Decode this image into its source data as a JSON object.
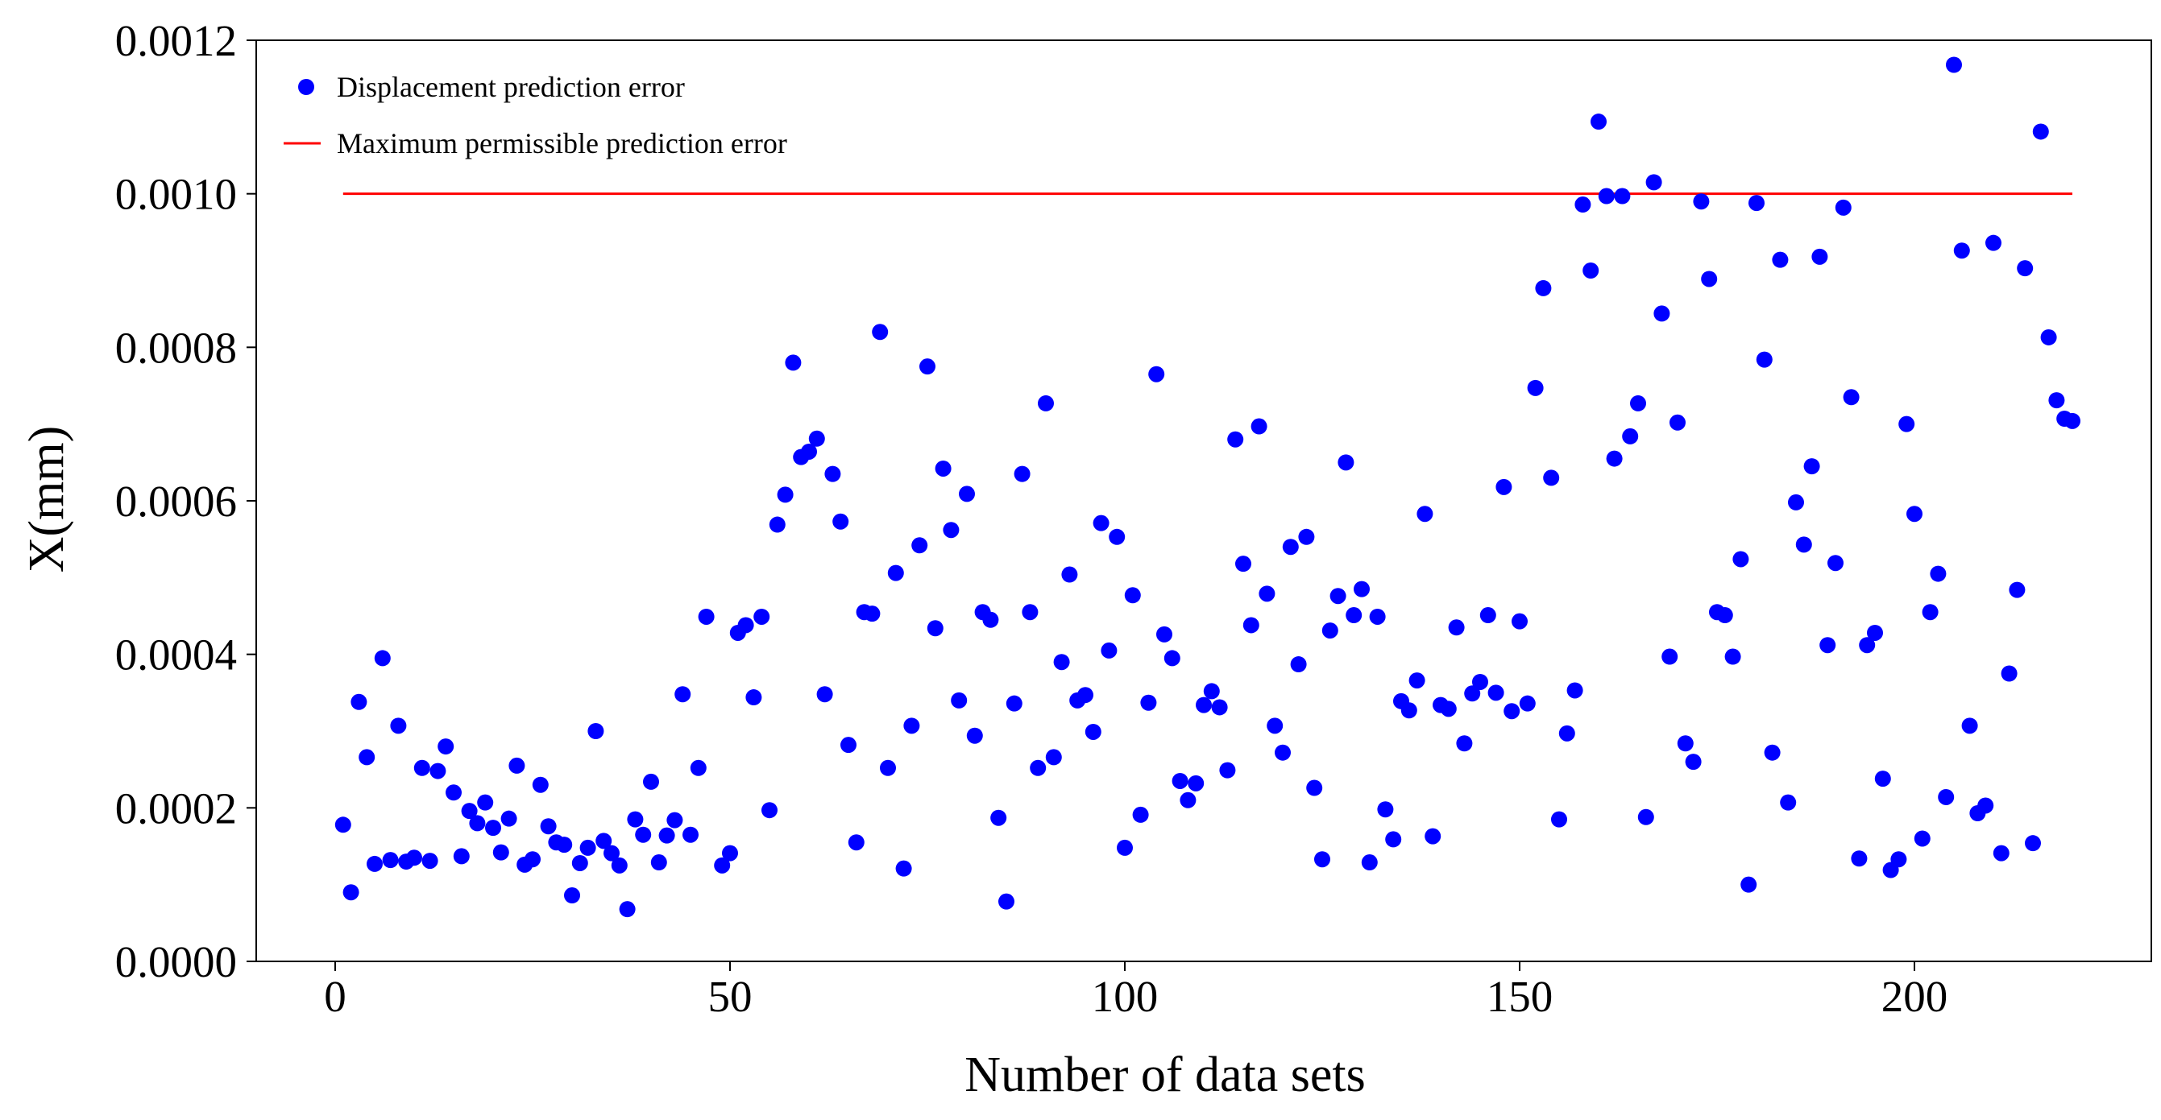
{
  "chart_data": {
    "type": "scatter",
    "title": "",
    "xlabel": "Number of data sets",
    "ylabel": "X(mm)",
    "xlim": [
      -10,
      230
    ],
    "ylim": [
      0,
      0.0012
    ],
    "x_ticks": [
      0,
      50,
      100,
      150,
      200
    ],
    "x_tick_labels": [
      "0",
      "50",
      "100",
      "150",
      "200"
    ],
    "y_ticks": [
      0,
      0.0002,
      0.0004,
      0.0006,
      0.0008,
      0.001,
      0.0012
    ],
    "y_tick_labels": [
      "0.0000",
      "0.0002",
      "0.0004",
      "0.0006",
      "0.0008",
      "0.0010",
      "0.0012"
    ],
    "grid": false,
    "legend_position": "top-left",
    "series": [
      {
        "name": "Displacement prediction error",
        "kind": "scatter",
        "color": "#0000ff",
        "points": [
          [
            1,
            0.000178
          ],
          [
            2,
            9e-05
          ],
          [
            3,
            0.000338
          ],
          [
            4,
            0.000266
          ],
          [
            5,
            0.000127
          ],
          [
            6,
            0.000395
          ],
          [
            7,
            0.000132
          ],
          [
            8,
            0.000307
          ],
          [
            9,
            0.00013
          ],
          [
            10,
            0.000135
          ],
          [
            11,
            0.000252
          ],
          [
            12,
            0.000131
          ],
          [
            13,
            0.000248
          ],
          [
            14,
            0.00028
          ],
          [
            15,
            0.00022
          ],
          [
            16,
            0.000137
          ],
          [
            17,
            0.000196
          ],
          [
            18,
            0.00018
          ],
          [
            19,
            0.000207
          ],
          [
            20,
            0.000174
          ],
          [
            21,
            0.000142
          ],
          [
            22,
            0.000186
          ],
          [
            23,
            0.000255
          ],
          [
            24,
            0.000126
          ],
          [
            25,
            0.000133
          ],
          [
            26,
            0.00023
          ],
          [
            27,
            0.000176
          ],
          [
            28,
            0.000155
          ],
          [
            29,
            0.000152
          ],
          [
            30,
            8.6e-05
          ],
          [
            31,
            0.000128
          ],
          [
            32,
            0.000148
          ],
          [
            33,
            0.0003
          ],
          [
            34,
            0.000157
          ],
          [
            35,
            0.000141
          ],
          [
            36,
            0.000125
          ],
          [
            37,
            6.8e-05
          ],
          [
            38,
            0.000185
          ],
          [
            39,
            0.000165
          ],
          [
            40,
            0.000234
          ],
          [
            41,
            0.000129
          ],
          [
            42,
            0.000164
          ],
          [
            43,
            0.000184
          ],
          [
            44,
            0.000348
          ],
          [
            45,
            0.000165
          ],
          [
            46,
            0.000252
          ],
          [
            47,
            0.000449
          ],
          [
            49,
            0.000125
          ],
          [
            50,
            0.000141
          ],
          [
            51,
            0.000428
          ],
          [
            52,
            0.000438
          ],
          [
            53,
            0.000344
          ],
          [
            54,
            0.000449
          ],
          [
            55,
            0.000197
          ],
          [
            56,
            0.000569
          ],
          [
            57,
            0.000608
          ],
          [
            58,
            0.00078
          ],
          [
            59,
            0.000657
          ],
          [
            60,
            0.000664
          ],
          [
            61,
            0.000681
          ],
          [
            62,
            0.000348
          ],
          [
            63,
            0.000635
          ],
          [
            64,
            0.000573
          ],
          [
            65,
            0.000282
          ],
          [
            66,
            0.000155
          ],
          [
            67,
            0.000455
          ],
          [
            68,
            0.000453
          ],
          [
            69,
            0.00082
          ],
          [
            70,
            0.000252
          ],
          [
            71,
            0.000506
          ],
          [
            72,
            0.000121
          ],
          [
            73,
            0.000307
          ],
          [
            74,
            0.000542
          ],
          [
            75,
            0.000775
          ],
          [
            76,
            0.000434
          ],
          [
            77,
            0.000642
          ],
          [
            78,
            0.000562
          ],
          [
            79,
            0.00034
          ],
          [
            80,
            0.000609
          ],
          [
            81,
            0.000294
          ],
          [
            82,
            0.000455
          ],
          [
            83,
            0.000445
          ],
          [
            84,
            0.000187
          ],
          [
            85,
            7.8e-05
          ],
          [
            86,
            0.000336
          ],
          [
            87,
            0.000635
          ],
          [
            88,
            0.000455
          ],
          [
            89,
            0.000252
          ],
          [
            90,
            0.000727
          ],
          [
            91,
            0.000266
          ],
          [
            92,
            0.00039
          ],
          [
            93,
            0.000504
          ],
          [
            94,
            0.00034
          ],
          [
            95,
            0.000347
          ],
          [
            96,
            0.000299
          ],
          [
            97,
            0.000571
          ],
          [
            98,
            0.000405
          ],
          [
            99,
            0.000553
          ],
          [
            100,
            0.000148
          ],
          [
            101,
            0.000477
          ],
          [
            102,
            0.000191
          ],
          [
            103,
            0.000337
          ],
          [
            104,
            0.000765
          ],
          [
            105,
            0.000426
          ],
          [
            106,
            0.000395
          ],
          [
            107,
            0.000235
          ],
          [
            108,
            0.00021
          ],
          [
            109,
            0.000232
          ],
          [
            110,
            0.000334
          ],
          [
            111,
            0.000352
          ],
          [
            112,
            0.000331
          ],
          [
            113,
            0.000249
          ],
          [
            114,
            0.00068
          ],
          [
            115,
            0.000518
          ],
          [
            116,
            0.000438
          ],
          [
            117,
            0.000697
          ],
          [
            118,
            0.000479
          ],
          [
            119,
            0.000307
          ],
          [
            120,
            0.000272
          ],
          [
            121,
            0.00054
          ],
          [
            122,
            0.000387
          ],
          [
            123,
            0.000553
          ],
          [
            124,
            0.000226
          ],
          [
            125,
            0.000133
          ],
          [
            126,
            0.000431
          ],
          [
            127,
            0.000476
          ],
          [
            128,
            0.00065
          ],
          [
            129,
            0.000451
          ],
          [
            130,
            0.000485
          ],
          [
            131,
            0.000129
          ],
          [
            132,
            0.000449
          ],
          [
            133,
            0.000198
          ],
          [
            134,
            0.000159
          ],
          [
            135,
            0.000339
          ],
          [
            136,
            0.000327
          ],
          [
            137,
            0.000366
          ],
          [
            138,
            0.000583
          ],
          [
            139,
            0.000163
          ],
          [
            140,
            0.000334
          ],
          [
            141,
            0.000329
          ],
          [
            142,
            0.000435
          ],
          [
            143,
            0.000284
          ],
          [
            144,
            0.000349
          ],
          [
            145,
            0.000364
          ],
          [
            146,
            0.000451
          ],
          [
            147,
            0.00035
          ],
          [
            148,
            0.000618
          ],
          [
            149,
            0.000326
          ],
          [
            150,
            0.000443
          ],
          [
            151,
            0.000336
          ],
          [
            152,
            0.000747
          ],
          [
            153,
            0.000877
          ],
          [
            154,
            0.00063
          ],
          [
            155,
            0.000185
          ],
          [
            156,
            0.000297
          ],
          [
            157,
            0.000353
          ],
          [
            158,
            0.000986
          ],
          [
            159,
            0.0009
          ],
          [
            160,
            0.001094
          ],
          [
            161,
            0.000997
          ],
          [
            162,
            0.000655
          ],
          [
            163,
            0.000997
          ],
          [
            164,
            0.000684
          ],
          [
            165,
            0.000727
          ],
          [
            166,
            0.000188
          ],
          [
            167,
            0.001015
          ],
          [
            168,
            0.000844
          ],
          [
            169,
            0.000397
          ],
          [
            170,
            0.000702
          ],
          [
            171,
            0.000284
          ],
          [
            172,
            0.00026
          ],
          [
            173,
            0.00099
          ],
          [
            174,
            0.000889
          ],
          [
            175,
            0.000455
          ],
          [
            176,
            0.000451
          ],
          [
            177,
            0.000397
          ],
          [
            178,
            0.000524
          ],
          [
            179,
            0.0001
          ],
          [
            180,
            0.000988
          ],
          [
            181,
            0.000784
          ],
          [
            182,
            0.000272
          ],
          [
            183,
            0.000914
          ],
          [
            184,
            0.000207
          ],
          [
            185,
            0.000598
          ],
          [
            186,
            0.000543
          ],
          [
            187,
            0.000645
          ],
          [
            188,
            0.000918
          ],
          [
            189,
            0.000412
          ],
          [
            190,
            0.000519
          ],
          [
            191,
            0.000982
          ],
          [
            192,
            0.000735
          ],
          [
            193,
            0.000134
          ],
          [
            194,
            0.000412
          ],
          [
            195,
            0.000428
          ],
          [
            196,
            0.000238
          ],
          [
            197,
            0.000119
          ],
          [
            198,
            0.000133
          ],
          [
            199,
            0.0007
          ],
          [
            200,
            0.000583
          ],
          [
            201,
            0.00016
          ],
          [
            202,
            0.000455
          ],
          [
            203,
            0.000505
          ],
          [
            204,
            0.000214
          ],
          [
            205,
            0.001168
          ],
          [
            206,
            0.000926
          ],
          [
            207,
            0.000307
          ],
          [
            208,
            0.000193
          ],
          [
            209,
            0.000203
          ],
          [
            210,
            0.000936
          ],
          [
            211,
            0.000141
          ],
          [
            212,
            0.000375
          ],
          [
            213,
            0.000484
          ],
          [
            214,
            0.000903
          ],
          [
            215,
            0.000154
          ],
          [
            216,
            0.001081
          ],
          [
            217,
            0.000813
          ],
          [
            218,
            0.000731
          ],
          [
            219,
            0.000707
          ],
          [
            220,
            0.000704
          ]
        ]
      },
      {
        "name": "Maximum permissible prediction error",
        "kind": "line",
        "color": "#ff0000",
        "x": [
          1,
          220
        ],
        "y": [
          0.001,
          0.001
        ]
      }
    ]
  }
}
